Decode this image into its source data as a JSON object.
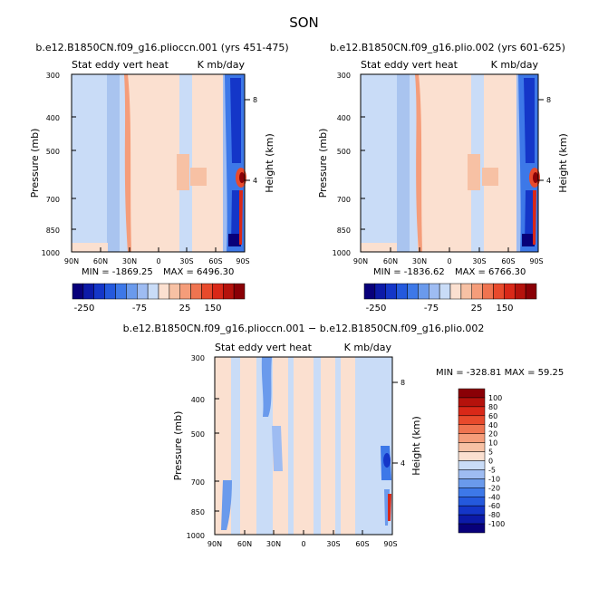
{
  "season": "SON",
  "chart_data": [
    {
      "type": "heatmap",
      "title": "b.e12.B1850CN.f09_g16.plioccn.001 (yrs 451-475)",
      "subtitle_left": "Stat eddy vert heat",
      "subtitle_right": "K mb/day",
      "ylabel": "Pressure (mb)",
      "ylabel_right": "Height (km)",
      "x_ticks": [
        "90N",
        "60N",
        "30N",
        "0",
        "30S",
        "60S",
        "90S"
      ],
      "y_ticks": [
        "300",
        "400",
        "500",
        "700",
        "850",
        "1000"
      ],
      "y_ticks_right": [
        "8",
        "4"
      ],
      "min_label": "MIN = -1869.25",
      "max_label": "MAX = 6496.30",
      "colorbar_labels": [
        "-250",
        "-75",
        "25",
        "150"
      ],
      "min": -1869.25,
      "max": 6496.3
    },
    {
      "type": "heatmap",
      "title": "b.e12.B1850CN.f09_g16.plio.002 (yrs 601-625)",
      "subtitle_left": "Stat eddy vert heat",
      "subtitle_right": "K mb/day",
      "ylabel": "Pressure (mb)",
      "ylabel_right": "Height (km)",
      "x_ticks": [
        "90N",
        "60N",
        "30N",
        "0",
        "30S",
        "60S",
        "90S"
      ],
      "y_ticks": [
        "300",
        "400",
        "500",
        "700",
        "850",
        "1000"
      ],
      "y_ticks_right": [
        "8",
        "4"
      ],
      "min_label": "MIN = -1836.62",
      "max_label": "MAX = 6766.30",
      "colorbar_labels": [
        "-250",
        "-75",
        "25",
        "150"
      ],
      "min": -1836.62,
      "max": 6766.3
    },
    {
      "type": "heatmap",
      "title": "b.e12.B1850CN.f09_g16.plioccn.001 − b.e12.B1850CN.f09_g16.plio.002",
      "subtitle_left": "Stat eddy vert heat",
      "subtitle_right": "K mb/day",
      "ylabel": "Pressure (mb)",
      "ylabel_right": "Height (km)",
      "x_ticks": [
        "90N",
        "60N",
        "30N",
        "0",
        "30S",
        "60S",
        "90S"
      ],
      "y_ticks": [
        "300",
        "400",
        "500",
        "700",
        "850",
        "1000"
      ],
      "y_ticks_right": [
        "8",
        "4"
      ],
      "minmax_label": "MIN = -328.81   MAX =  59.25",
      "colorbar_labels": [
        "100",
        "80",
        "60",
        "40",
        "20",
        "10",
        "5",
        "0",
        "-5",
        "-10",
        "-20",
        "-40",
        "-60",
        "-80",
        "-100"
      ],
      "min": -328.81,
      "max": 59.25
    }
  ],
  "colors": {
    "scale16": [
      "#08007a",
      "#0c1aa8",
      "#1436c8",
      "#2459dd",
      "#3d78e8",
      "#6a9aec",
      "#9ebcf2",
      "#c9dcf7",
      "#fbe0d0",
      "#f7c1a4",
      "#f59d7a",
      "#ef7450",
      "#e84a2c",
      "#d92818",
      "#b5120c",
      "#8a0006"
    ],
    "bg_blue": "#c9dcf7",
    "bg_peach": "#fbe0d0"
  }
}
